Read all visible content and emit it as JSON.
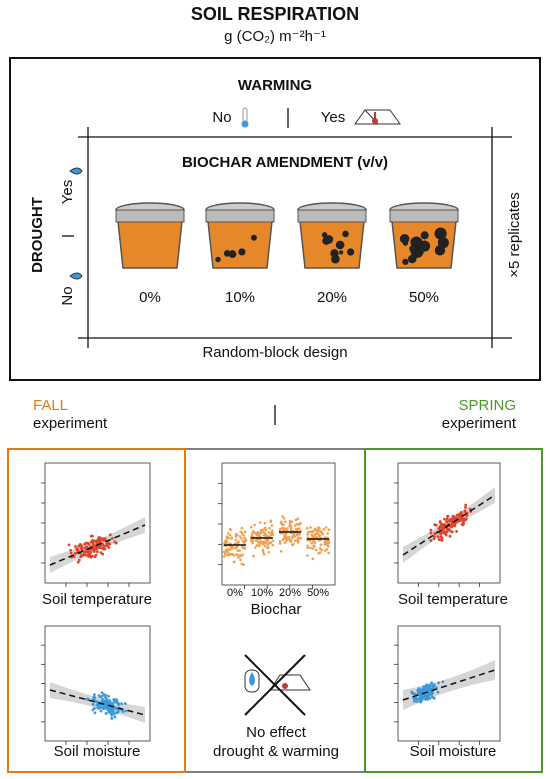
{
  "header": {
    "title": "SOIL RESPIRATION",
    "unit": "g (CO₂) m⁻²h⁻¹"
  },
  "design": {
    "warming": {
      "label": "WARMING",
      "no": "No",
      "yes": "Yes"
    },
    "biochar": {
      "label": "BIOCHAR AMENDMENT (v/v)",
      "levels": [
        "0%",
        "10%",
        "20%",
        "50%"
      ]
    },
    "drought": {
      "label": "DROUGHT",
      "yes": "Yes",
      "no": "No"
    },
    "replicates": "×5 replicates",
    "footer": "Random-block design"
  },
  "experiments": {
    "fall": {
      "name": "FALL",
      "label": "experiment"
    },
    "spring": {
      "name": "SPRING",
      "label": "experiment"
    }
  },
  "panels": {
    "fall": {
      "top": "Soil temperature",
      "bottom": "Soil moisture"
    },
    "middle": {
      "x_label": "Biochar",
      "x_ticks": [
        "0%",
        "10%",
        "20%",
        "50%"
      ],
      "note": [
        "No effect",
        "drought & warming"
      ]
    },
    "spring": {
      "top": "Soil temperature",
      "bottom": "Soil moisture"
    }
  }
}
